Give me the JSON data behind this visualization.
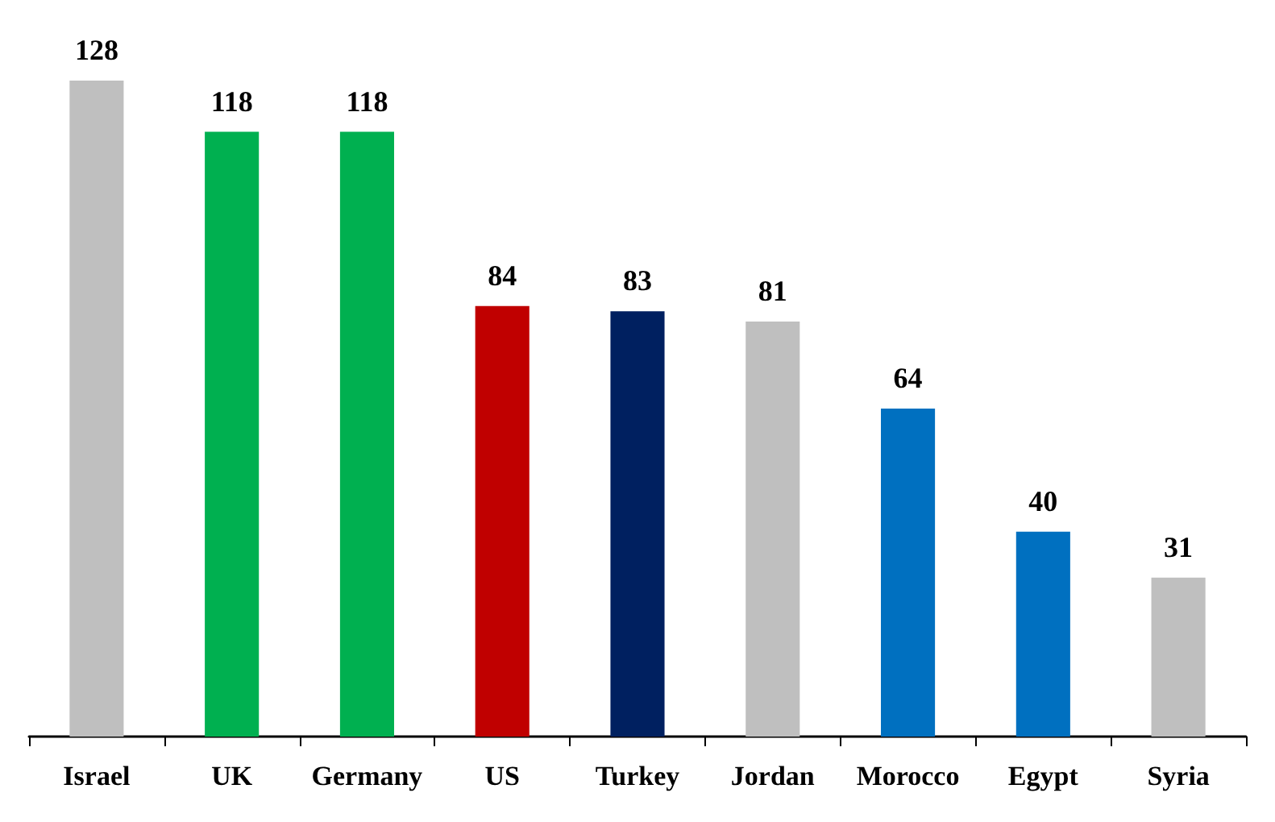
{
  "chart_data": {
    "type": "bar",
    "categories": [
      "Israel",
      "UK",
      "Germany",
      "US",
      "Turkey",
      "Jordan",
      "Morocco",
      "Egypt",
      "Syria"
    ],
    "values": [
      128,
      118,
      118,
      84,
      83,
      81,
      64,
      40,
      31
    ],
    "colors": [
      "#bfbfbf",
      "#00b050",
      "#00b050",
      "#c00000",
      "#002060",
      "#bfbfbf",
      "#0070c0",
      "#0070c0",
      "#bfbfbf"
    ],
    "data_labels": true
  }
}
